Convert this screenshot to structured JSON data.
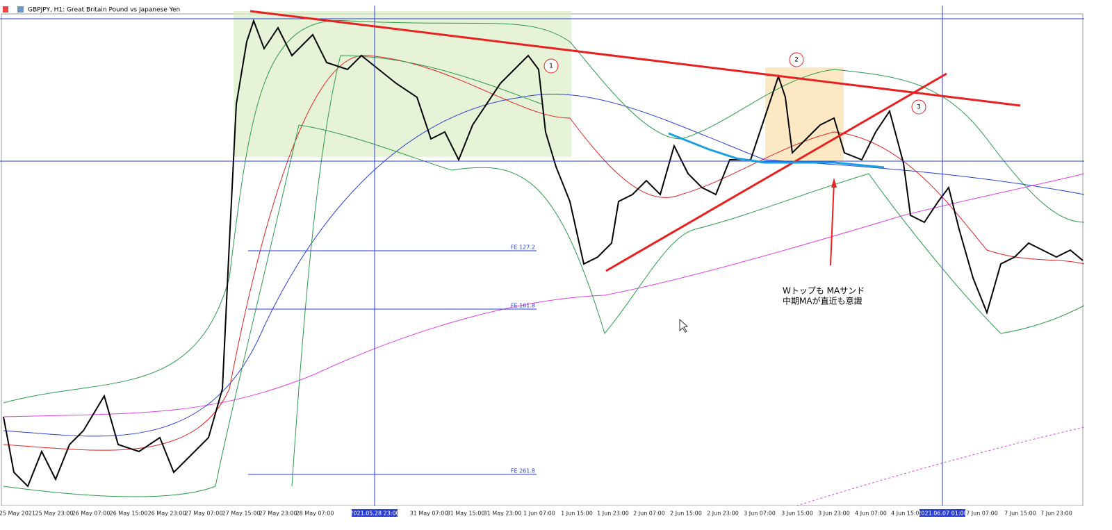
{
  "window": {
    "title": "GBPJPY, H1:  Great Britain Pound vs Japanese Yen"
  },
  "annotations": {
    "markers": [
      "1",
      "2",
      "3"
    ],
    "note": [
      "Wトップも MAサンド",
      "中期MAが直近も意識"
    ]
  },
  "fibo_labels": [
    "FE 127.2",
    "FE 161.8",
    "FE 261.8"
  ],
  "time_axis": {
    "labels": [
      "25 May 2021",
      "25 May 23:00",
      "26 May 07:00",
      "26 May 15:00",
      "26 May 23:00",
      "27 May 07:00",
      "27 May 15:00",
      "27 May 23:00",
      "28 May 07:00",
      "31 May 07:00",
      "31 May 15:00",
      "31 May 23:00",
      "1 Jun 07:00",
      "1 Jun 15:00",
      "1 Jun 23:00",
      "2 Jun 07:00",
      "2 Jun 15:00",
      "2 Jun 23:00",
      "3 Jun 07:00",
      "3 Jun 15:00",
      "3 Jun 23:00",
      "4 Jun 07:00",
      "4 Jun 15:00",
      "7 Jun 07:00",
      "7 Jun 15:00",
      "7 Jun 23:00"
    ],
    "highlighted": [
      "2021.05.28 23:00",
      "2021.06.07 01:00"
    ]
  }
}
